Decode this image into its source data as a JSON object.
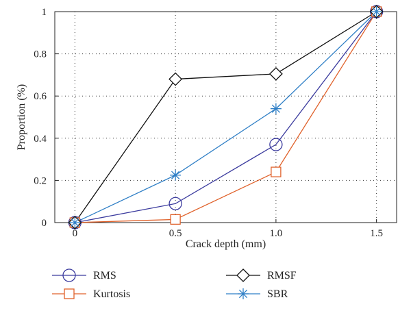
{
  "chart_data": {
    "type": "line",
    "xlabel": "Crack depth (mm)",
    "ylabel": "Proportion (%)",
    "xlim": [
      -0.1,
      1.6
    ],
    "ylim": [
      0,
      1
    ],
    "xticks": [
      0,
      0.5,
      1.0,
      1.5
    ],
    "xtick_labels": [
      "0",
      "0.5",
      "1.0",
      "1.5"
    ],
    "yticks": [
      0,
      0.2,
      0.4,
      0.6,
      0.8,
      1
    ],
    "ytick_labels": [
      "0",
      "0.2",
      "0.4",
      "0.6",
      "0.8",
      "1"
    ],
    "grid": true,
    "legend_position": "bottom",
    "x": [
      0,
      0.5,
      1.0,
      1.5
    ],
    "series": [
      {
        "name": "RMS",
        "values": [
          0,
          0.09,
          0.37,
          1.0
        ],
        "color": "#3b3b9e",
        "marker": "circle"
      },
      {
        "name": "Kurtosis",
        "values": [
          0,
          0.015,
          0.24,
          1.0
        ],
        "color": "#e0612a",
        "marker": "square"
      },
      {
        "name": "RMSF",
        "values": [
          0,
          0.68,
          0.705,
          1.0
        ],
        "color": "#111111",
        "marker": "diamond"
      },
      {
        "name": "SBR",
        "values": [
          0,
          0.225,
          0.54,
          1.0
        ],
        "color": "#2f7fc6",
        "marker": "asterisk"
      }
    ]
  }
}
